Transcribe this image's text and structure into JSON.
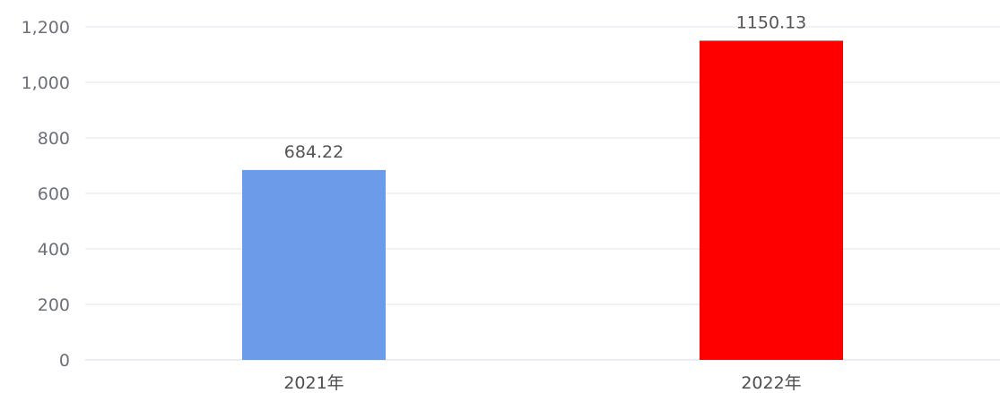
{
  "chart_data": {
    "type": "bar",
    "categories": [
      "2021年",
      "2022年"
    ],
    "values": [
      684.22,
      1150.13
    ],
    "value_labels": [
      "684.22",
      "1150.13"
    ],
    "bar_colors": [
      "#6c9bea",
      "#ff0000"
    ],
    "ylim": [
      0,
      1200
    ],
    "yticks": [
      0,
      200,
      400,
      600,
      800,
      1000,
      1200
    ],
    "ytick_labels": [
      "0",
      "200",
      "400",
      "600",
      "800",
      "1,000",
      "1,200"
    ],
    "grid": true,
    "title": "",
    "xlabel": "",
    "ylabel": ""
  }
}
